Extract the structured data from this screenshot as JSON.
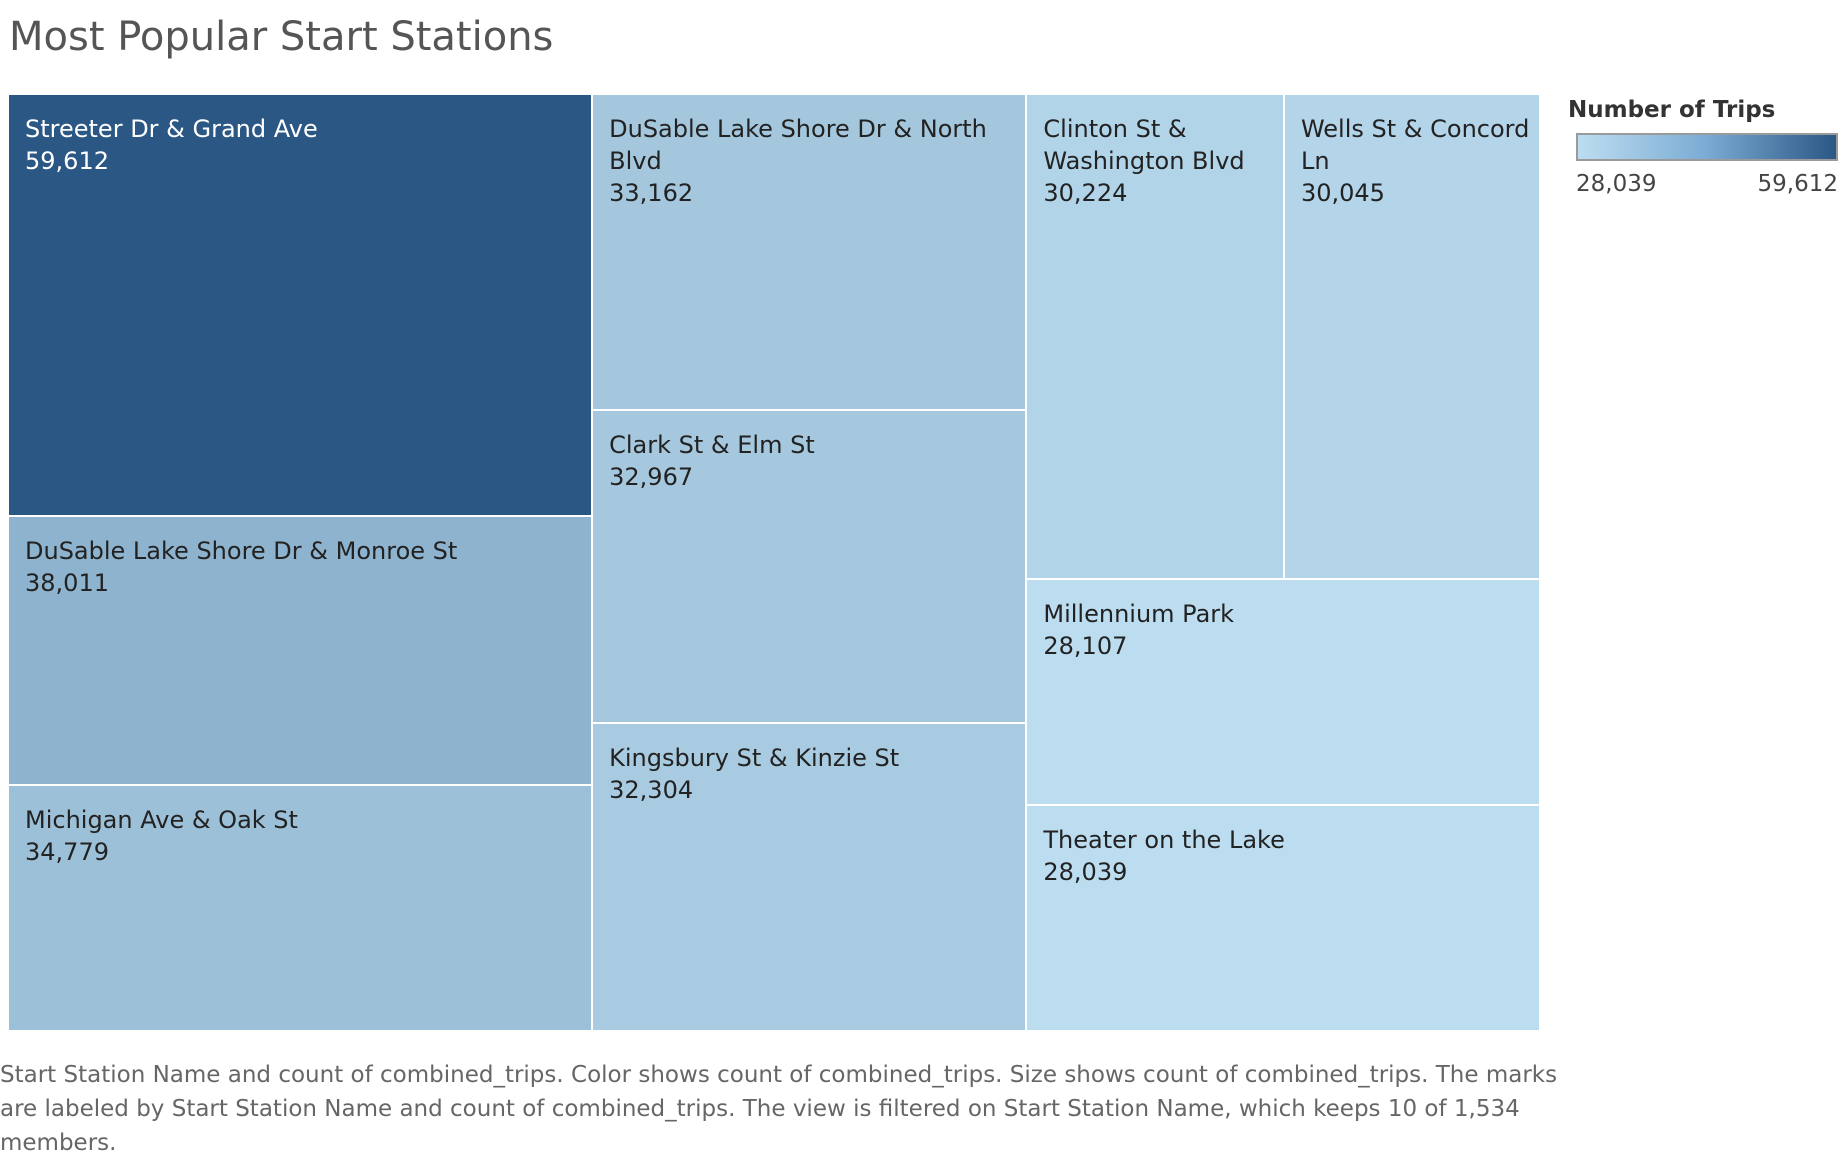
{
  "chart_data": {
    "type": "treemap",
    "title": "Most Popular Start Stations",
    "legend": {
      "title": "Number of Trips",
      "min_label": "28,039",
      "max_label": "59,612",
      "min_color": "#bcddf0",
      "max_color": "#2b5784",
      "placement": "right"
    },
    "items": [
      {
        "name": "Streeter Dr & Grand Ave",
        "value": 59612,
        "label": "59,612"
      },
      {
        "name": "DuSable Lake Shore Dr & Monroe St",
        "value": 38011,
        "label": "38,011"
      },
      {
        "name": "Michigan Ave & Oak St",
        "value": 34779,
        "label": "34,779"
      },
      {
        "name": "DuSable Lake Shore Dr & North Blvd",
        "value": 33162,
        "label": "33,162"
      },
      {
        "name": "Clark St & Elm St",
        "value": 32967,
        "label": "32,967"
      },
      {
        "name": "Kingsbury St & Kinzie St",
        "value": 32304,
        "label": "32,304"
      },
      {
        "name": "Clinton St & Washington Blvd",
        "value": 30224,
        "label": "30,224"
      },
      {
        "name": "Wells St & Concord Ln",
        "value": 30045,
        "label": "30,045"
      },
      {
        "name": "Millennium Park",
        "value": 28107,
        "label": "28,107"
      },
      {
        "name": "Theater on the Lake",
        "value": 28039,
        "label": "28,039"
      }
    ]
  },
  "caption": "Start Station Name and count of combined_trips.  Color shows count of combined_trips.  Size shows count of combined_trips.  The marks are labeled by Start Station Name and count of combined_trips. The view is filtered on Start Station Name, which keeps 10 of 1,534 members."
}
